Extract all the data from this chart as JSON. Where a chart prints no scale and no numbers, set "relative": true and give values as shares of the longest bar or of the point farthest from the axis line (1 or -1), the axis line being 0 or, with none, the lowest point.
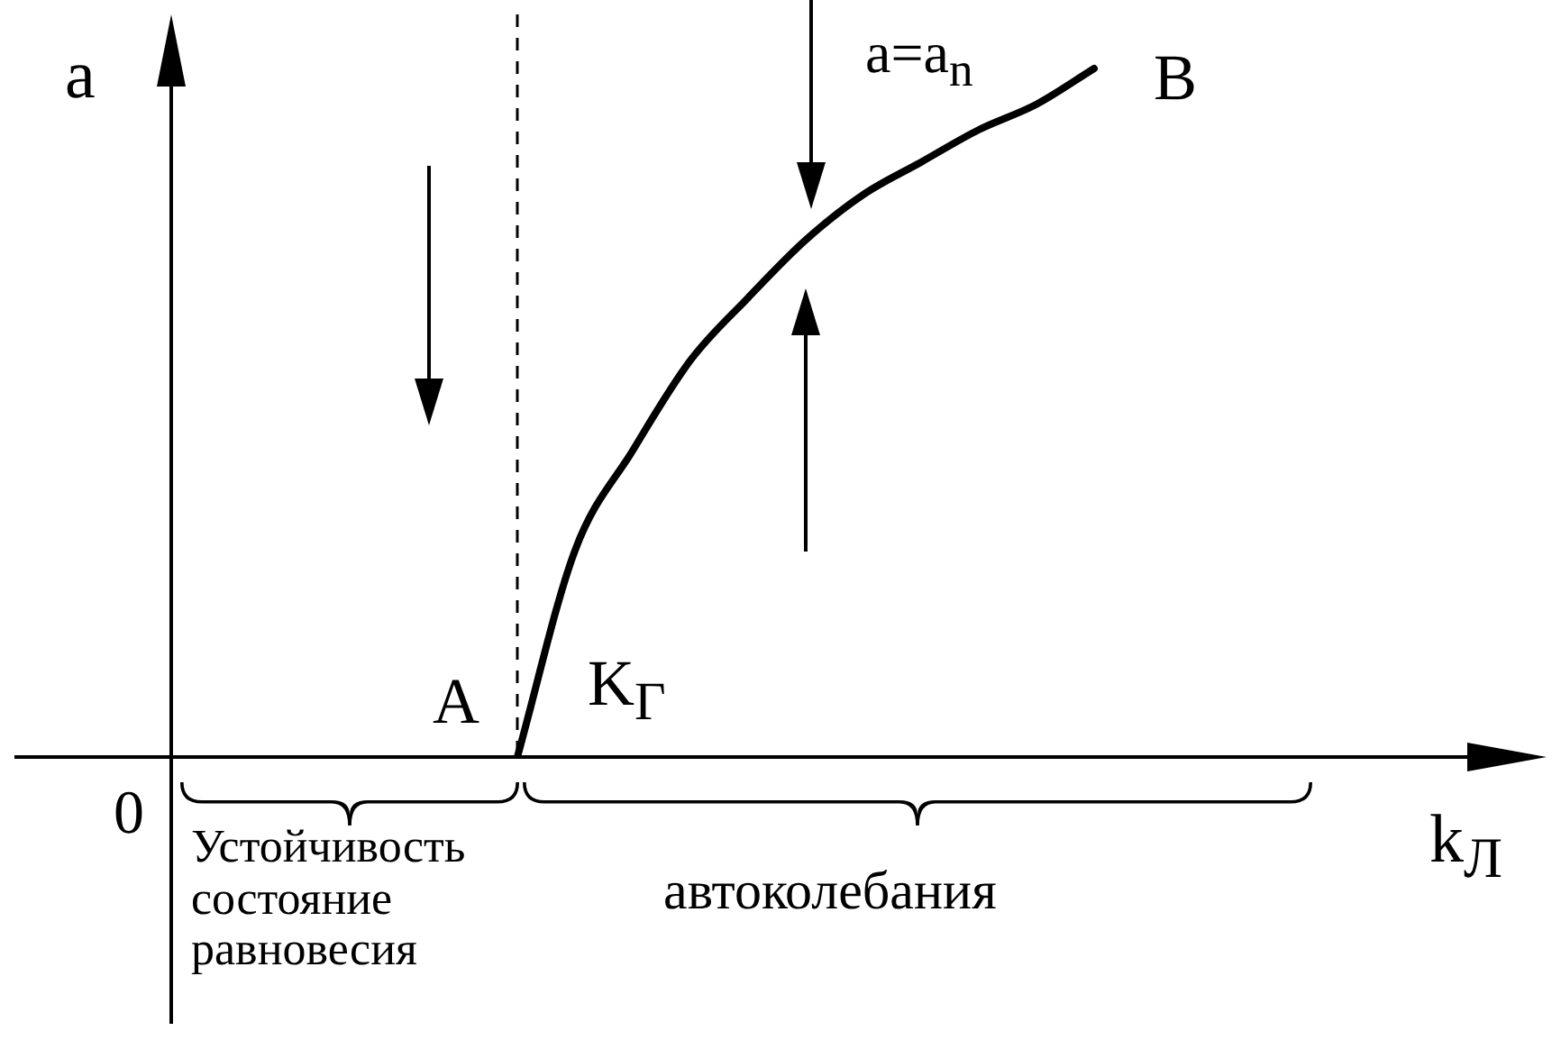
{
  "chart_data": {
    "type": "line",
    "relative": true,
    "xlabel": "k$_{Л}$",
    "ylabel": "a",
    "categories": [
      null,
      null,
      null,
      null,
      null,
      null,
      null,
      null,
      null,
      null,
      null,
      null,
      null,
      null,
      null,
      null,
      null,
      null,
      null,
      null,
      null,
      null,
      null,
      null
    ],
    "series": [
      {
        "color": "#000000",
        "values": [
          null,
          null,
          null,
          null,
          null,
          null,
          0,
          0.3,
          0.445,
          0.576,
          0.667,
          0.751,
          0.817,
          0.864,
          0.911,
          0.948,
          1,
          null,
          null,
          null,
          null,
          null,
          null,
          null
        ]
      }
    ],
    "annotations": [
      "0",
      "A",
      "K$_{Г}$",
      "B",
      "a=a$_{n}$",
      "Устойчивость состояние равновесия",
      "автоколебания"
    ],
    "marker": "none",
    "line_style": "solid",
    "grid": false,
    "legend": false
  }
}
